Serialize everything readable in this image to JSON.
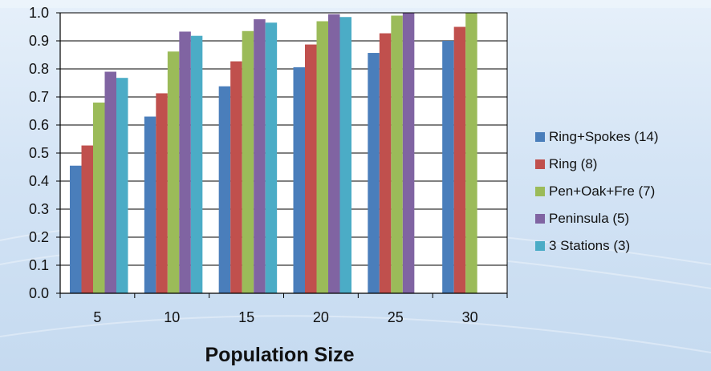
{
  "colors": {
    "plot_background": "#ffffff",
    "grid": "#000000",
    "page_background": "#d6e6f6"
  },
  "chart_data": {
    "type": "bar",
    "title": "",
    "xlabel": "Population Size",
    "ylabel": "",
    "categories": [
      "5",
      "10",
      "15",
      "20",
      "25",
      "30"
    ],
    "ylim": [
      0.0,
      1.0
    ],
    "yticks": [
      "0.0",
      "0.1",
      "0.2",
      "0.3",
      "0.4",
      "0.5",
      "0.6",
      "0.7",
      "0.8",
      "0.9",
      "1.0"
    ],
    "grid": true,
    "legend_position": "right",
    "series": [
      {
        "name": "Ring+Spokes (14)",
        "color": "#4a7ebb",
        "values": [
          0.455,
          0.63,
          0.738,
          0.806,
          0.857,
          0.9
        ]
      },
      {
        "name": "Ring (8)",
        "color": "#c0504d",
        "values": [
          0.527,
          0.713,
          0.827,
          0.887,
          0.927,
          0.95
        ]
      },
      {
        "name": "Pen+Oak+Fre (7)",
        "color": "#9bbb59",
        "values": [
          0.68,
          0.862,
          0.935,
          0.97,
          0.99,
          1.0
        ]
      },
      {
        "name": "Peninsula (5)",
        "color": "#8064a2",
        "values": [
          0.79,
          0.933,
          0.977,
          0.995,
          1.0,
          null
        ]
      },
      {
        "name": "3 Stations (3)",
        "color": "#4bacc6",
        "values": [
          0.768,
          0.918,
          0.965,
          0.985,
          null,
          null
        ]
      }
    ]
  }
}
